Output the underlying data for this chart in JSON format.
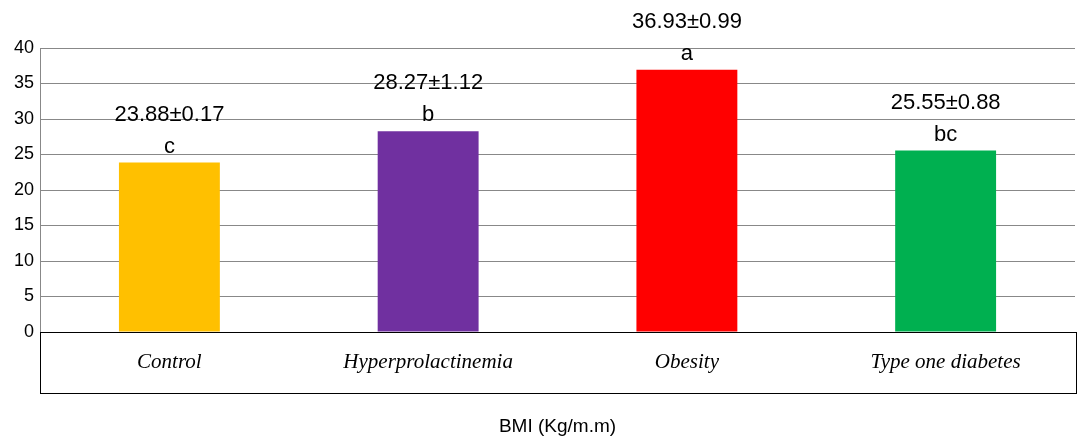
{
  "chart_data": {
    "type": "bar",
    "xlabel": "BMI (Kg/m.m)",
    "categories": [
      "Control",
      "Hyperprolactinemia",
      "Obesity",
      "Type one diabetes"
    ],
    "values": [
      23.88,
      28.27,
      36.93,
      25.55
    ],
    "colors": [
      "#ffc000",
      "#7030a0",
      "#ff0000",
      "#00b050"
    ],
    "value_labels": [
      "23.88±0.17",
      "28.27±1.12",
      "36.93±0.99",
      "25.55±0.88"
    ],
    "annotations": [
      "c",
      "b",
      "a",
      "bc"
    ],
    "ylim": [
      0,
      40
    ],
    "yticks": [
      0,
      5,
      10,
      15,
      20,
      25,
      30,
      35,
      40
    ],
    "grid": "y",
    "legend": false
  }
}
